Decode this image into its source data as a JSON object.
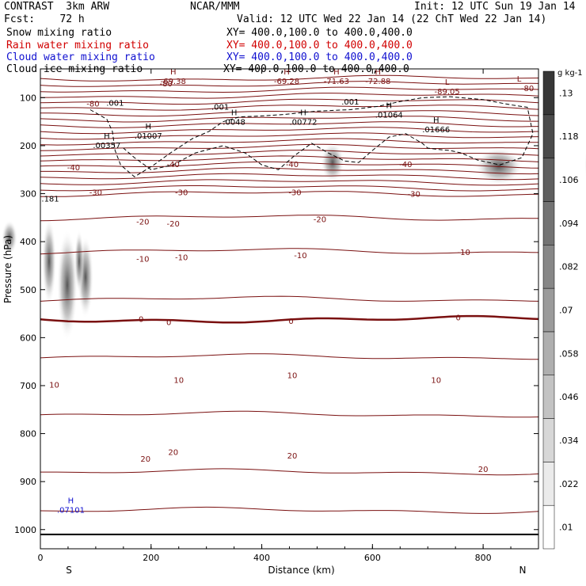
{
  "header": {
    "model": "CONTRAST  3km ARW",
    "org": "NCAR/MMM",
    "init": "Init: 12 UTC Sun 19 Jan 14",
    "fcst": "Fcst:    72 h",
    "valid": "Valid: 12 UTC Wed 22 Jan 14 (22 ChT Wed 22 Jan 14)"
  },
  "fields": [
    {
      "label": "Snow mixing ratio",
      "xy": "XY= 400.0,100.0 to 400.0,400.0",
      "color": "#000000"
    },
    {
      "label": "Rain water mixing ratio",
      "xy": "XY= 400.0,100.0 to 400.0,400.0",
      "color": "#d10000"
    },
    {
      "label": "Cloud water mixing ratio",
      "xy": "XY= 400.0,100.0 to 400.0,400.0",
      "color": "#1010d0"
    },
    {
      "label": "Cloud ice mixing ratio",
      "xy": "XY= 400.0,100.0 to 400.0,400.0",
      "color": "#000000"
    }
  ],
  "chart_data": {
    "type": "cross-section",
    "xlabel": "Distance (km)",
    "ylabel": "Pressure (hPa)",
    "xlim": [
      0,
      900
    ],
    "ylim": [
      1040,
      40
    ],
    "x_ticks": [
      0,
      200,
      400,
      600,
      800
    ],
    "y_ticks": [
      100,
      200,
      300,
      400,
      500,
      600,
      700,
      800,
      900,
      1000
    ],
    "end_labels": [
      "S",
      "N"
    ],
    "temperature_contour_levels": [
      -80,
      -70,
      -60,
      -50,
      -40,
      -30,
      -20,
      -10,
      0,
      10,
      20
    ],
    "temperature_labels": [
      {
        "text": "-80",
        "x": 227,
        "p": 70
      },
      {
        "text": "-80",
        "x": 95,
        "p": 112
      },
      {
        "text": "-80",
        "x": 880,
        "p": 80
      },
      {
        "text": "-40",
        "x": 60,
        "p": 245
      },
      {
        "text": "-40",
        "x": 240,
        "p": 238
      },
      {
        "text": "-40",
        "x": 455,
        "p": 238
      },
      {
        "text": "-40",
        "x": 660,
        "p": 238
      },
      {
        "text": "-30",
        "x": 100,
        "p": 297
      },
      {
        "text": "-30",
        "x": 255,
        "p": 297
      },
      {
        "text": "-30",
        "x": 460,
        "p": 297
      },
      {
        "text": "-30",
        "x": 675,
        "p": 300
      },
      {
        "text": "-20",
        "x": 185,
        "p": 358
      },
      {
        "text": "-20",
        "x": 240,
        "p": 362
      },
      {
        "text": "-20",
        "x": 505,
        "p": 353
      },
      {
        "text": "-10",
        "x": 185,
        "p": 435
      },
      {
        "text": "-10",
        "x": 255,
        "p": 432
      },
      {
        "text": "-10",
        "x": 470,
        "p": 428
      },
      {
        "text": "-10",
        "x": 765,
        "p": 421
      },
      {
        "text": "0",
        "x": 182,
        "p": 561
      },
      {
        "text": "0",
        "x": 232,
        "p": 567
      },
      {
        "text": "0",
        "x": 453,
        "p": 565
      },
      {
        "text": "0",
        "x": 755,
        "p": 557
      },
      {
        "text": "10",
        "x": 25,
        "p": 698
      },
      {
        "text": "10",
        "x": 250,
        "p": 688
      },
      {
        "text": "10",
        "x": 455,
        "p": 678
      },
      {
        "text": "10",
        "x": 715,
        "p": 688
      },
      {
        "text": "20",
        "x": 190,
        "p": 852
      },
      {
        "text": "20",
        "x": 240,
        "p": 838
      },
      {
        "text": "20",
        "x": 455,
        "p": 845
      },
      {
        "text": "20",
        "x": 800,
        "p": 873
      }
    ],
    "highs_lows": [
      {
        "type": "H",
        "value": "-69.38",
        "x": 240,
        "p": 65
      },
      {
        "type": "H",
        "value": "-69.28",
        "x": 445,
        "p": 65
      },
      {
        "type": "H",
        "value": "-71.63",
        "x": 535,
        "p": 65
      },
      {
        "type": "H",
        "value": "-72.88",
        "x": 610,
        "p": 65
      },
      {
        "type": "L",
        "value": "-89.05",
        "x": 735,
        "p": 86
      },
      {
        "type": "L",
        "value": "",
        "x": 865,
        "p": 80
      }
    ],
    "cloud_ice_contours": [
      ".001",
      ".001",
      ".001"
    ],
    "cloud_ice_maxima": [
      {
        "type": "H",
        "value": ".00357",
        "x": 120,
        "p": 202
      },
      {
        "type": "H",
        "value": ".01007",
        "x": 195,
        "p": 182
      },
      {
        "type": "H",
        "value": ".0048",
        "x": 350,
        "p": 153
      },
      {
        "type": "H",
        "value": ".00772",
        "x": 475,
        "p": 153
      },
      {
        "type": "H",
        "value": ".01064",
        "x": 630,
        "p": 138
      },
      {
        "type": "H",
        "value": ".01666",
        "x": 715,
        "p": 169
      },
      {
        "type": "",
        "value": ".181",
        "x": 2,
        "p": 313
      }
    ],
    "cloud_water_maxima": [
      {
        "type": "H",
        "value": ".07101",
        "x": 55,
        "p": 955
      }
    ],
    "colorbar": {
      "unit": "g kg-1",
      "levels": [
        ".01",
        ".022",
        ".034",
        ".046",
        ".058",
        ".07",
        ".082",
        ".094",
        ".106",
        ".118",
        ".13"
      ]
    }
  }
}
